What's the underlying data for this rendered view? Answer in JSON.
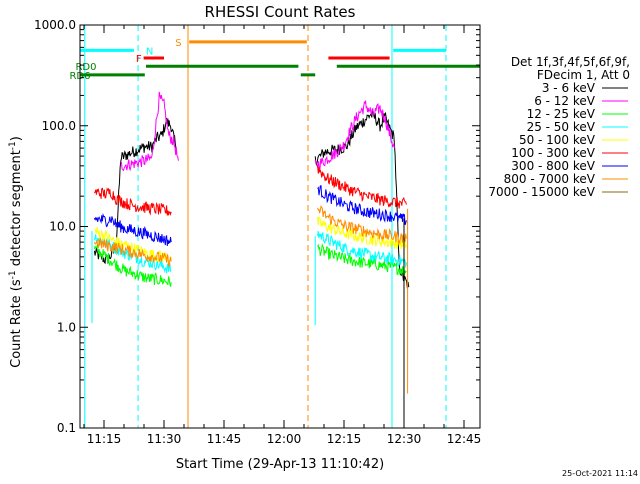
{
  "chart_data": {
    "type": "line",
    "title": "RHESSI Count Rates",
    "xlabel": "Start Time (29-Apr-13 11:10:42)",
    "ylabel_main": "Count Rate (s",
    "ylabel_sup1": "-1",
    "ylabel_mid": " detector segment",
    "ylabel_sup2": "-1",
    "ylabel_end": ")",
    "y_log": true,
    "ylim": [
      0.1,
      1000
    ],
    "xlim": [
      11.15,
      12.8167
    ],
    "x_ticks": [
      {
        "x": 11.25,
        "label": "11:15"
      },
      {
        "x": 11.5,
        "label": "11:30"
      },
      {
        "x": 11.75,
        "label": "11:45"
      },
      {
        "x": 12.0,
        "label": "12:00"
      },
      {
        "x": 12.25,
        "label": "12:15"
      },
      {
        "x": 12.5,
        "label": "12:30"
      },
      {
        "x": 12.75,
        "label": "12:45"
      }
    ],
    "y_ticks": [
      {
        "y": 0.1,
        "label": "0.1"
      },
      {
        "y": 1,
        "label": "1.0"
      },
      {
        "y": 10,
        "label": "10.0"
      },
      {
        "y": 100,
        "label": "100.0"
      },
      {
        "y": 1000,
        "label": "1000.0"
      }
    ],
    "legend_header": [
      "Det 1f,3f,4f,5f,6f,9f,",
      "FDecim 1, Att 0"
    ],
    "legend_position": "right",
    "series": [
      {
        "name": "3 - 6 keV",
        "color": "#000000",
        "segments": [
          [
            [
              11.21,
              5.5
            ],
            [
              11.26,
              4.6
            ],
            [
              11.28,
              5.2
            ],
            [
              11.3,
              6.2
            ],
            [
              11.32,
              48
            ],
            [
              11.37,
              55
            ],
            [
              11.42,
              62
            ],
            [
              11.45,
              62
            ],
            [
              11.47,
              75
            ],
            [
              11.49,
              80
            ],
            [
              11.51,
              110
            ],
            [
              11.53,
              100
            ],
            [
              11.55,
              60
            ]
          ],
          [
            [
              12.13,
              45
            ],
            [
              12.17,
              55
            ],
            [
              12.22,
              58
            ],
            [
              12.26,
              62
            ],
            [
              12.3,
              95
            ],
            [
              12.33,
              110
            ],
            [
              12.36,
              130
            ],
            [
              12.38,
              120
            ],
            [
              12.4,
              100
            ],
            [
              12.42,
              120
            ],
            [
              12.44,
              95
            ],
            [
              12.46,
              75
            ],
            [
              12.48,
              4.0
            ],
            [
              12.5,
              3.0
            ],
            [
              12.52,
              2.5
            ]
          ]
        ]
      },
      {
        "name": "6 - 12 keV",
        "color": "#ff00ff",
        "segments": [
          [
            [
              11.32,
              40
            ],
            [
              11.37,
              42
            ],
            [
              11.42,
              45
            ],
            [
              11.45,
              48
            ],
            [
              11.47,
              120
            ],
            [
              11.48,
              190
            ],
            [
              11.5,
              160
            ],
            [
              11.52,
              80
            ],
            [
              11.54,
              70
            ],
            [
              11.56,
              45
            ]
          ],
          [
            [
              12.13,
              40
            ],
            [
              12.17,
              45
            ],
            [
              12.22,
              55
            ],
            [
              12.25,
              65
            ],
            [
              12.28,
              95
            ],
            [
              12.31,
              130
            ],
            [
              12.34,
              160
            ],
            [
              12.37,
              130
            ],
            [
              12.4,
              150
            ],
            [
              12.42,
              120
            ],
            [
              12.45,
              70
            ],
            [
              12.46,
              60
            ]
          ]
        ]
      },
      {
        "name": "12 - 25 keV",
        "color": "#00ff00",
        "segments": [
          [
            [
              11.21,
              6.0
            ],
            [
              11.26,
              5.0
            ],
            [
              11.3,
              4.2
            ],
            [
              11.34,
              3.6
            ],
            [
              11.38,
              3.4
            ],
            [
              11.42,
              3.1
            ],
            [
              11.46,
              3.0
            ],
            [
              11.5,
              2.9
            ],
            [
              11.53,
              2.8
            ]
          ],
          [
            [
              12.14,
              6.0
            ],
            [
              12.2,
              5.2
            ],
            [
              12.26,
              4.7
            ],
            [
              12.32,
              4.4
            ],
            [
              12.38,
              4.2
            ],
            [
              12.44,
              4.0
            ],
            [
              12.48,
              3.8
            ],
            [
              12.51,
              3.6
            ]
          ]
        ]
      },
      {
        "name": "25 - 50 keV",
        "color": "#00ffff",
        "segments": [
          [
            [
              11.21,
              8.0
            ],
            [
              11.26,
              7.0
            ],
            [
              11.3,
              6.0
            ],
            [
              11.34,
              5.4
            ],
            [
              11.38,
              5.0
            ],
            [
              11.42,
              4.5
            ],
            [
              11.46,
              4.3
            ],
            [
              11.5,
              4.0
            ],
            [
              11.53,
              3.7
            ]
          ],
          [
            [
              12.14,
              8.5
            ],
            [
              12.2,
              7.0
            ],
            [
              12.26,
              6.0
            ],
            [
              12.32,
              5.5
            ],
            [
              12.38,
              5.0
            ],
            [
              12.44,
              4.8
            ],
            [
              12.48,
              4.6
            ],
            [
              12.51,
              4.4
            ]
          ]
        ]
      },
      {
        "name": "50 - 100 keV",
        "color": "#ffff00",
        "segments": [
          [
            [
              11.21,
              9.0
            ],
            [
              11.26,
              8.0
            ],
            [
              11.3,
              7.0
            ],
            [
              11.34,
              6.5
            ],
            [
              11.38,
              6.0
            ],
            [
              11.42,
              5.5
            ],
            [
              11.46,
              5.2
            ],
            [
              11.5,
              5.0
            ],
            [
              11.53,
              4.8
            ]
          ],
          [
            [
              12.14,
              11
            ],
            [
              12.2,
              9.5
            ],
            [
              12.26,
              8.5
            ],
            [
              12.32,
              7.8
            ],
            [
              12.38,
              7.3
            ],
            [
              12.44,
              7.0
            ],
            [
              12.48,
              6.8
            ],
            [
              12.51,
              6.6
            ]
          ]
        ]
      },
      {
        "name": "100 - 300 keV",
        "color": "#ff0000",
        "segments": [
          [
            [
              11.21,
              22
            ],
            [
              11.26,
              21
            ],
            [
              11.28,
              22
            ],
            [
              11.3,
              19
            ],
            [
              11.34,
              17
            ],
            [
              11.38,
              16
            ],
            [
              11.42,
              15.5
            ],
            [
              11.46,
              15
            ],
            [
              11.5,
              14.5
            ],
            [
              11.53,
              14
            ]
          ],
          [
            [
              12.14,
              38
            ],
            [
              12.18,
              30
            ],
            [
              12.22,
              27
            ],
            [
              12.26,
              24
            ],
            [
              12.3,
              22
            ],
            [
              12.34,
              20
            ],
            [
              12.38,
              19
            ],
            [
              12.42,
              18
            ],
            [
              12.46,
              17.5
            ],
            [
              12.48,
              17
            ],
            [
              12.51,
              16.5
            ]
          ]
        ]
      },
      {
        "name": "300 - 800 keV",
        "color": "#0000ff",
        "segments": [
          [
            [
              11.21,
              12
            ],
            [
              11.26,
              11.5
            ],
            [
              11.28,
              12
            ],
            [
              11.3,
              10.5
            ],
            [
              11.34,
              9.5
            ],
            [
              11.38,
              9.0
            ],
            [
              11.42,
              8.5
            ],
            [
              11.46,
              8.0
            ],
            [
              11.5,
              7.5
            ],
            [
              11.53,
              7.0
            ]
          ],
          [
            [
              12.14,
              24
            ],
            [
              12.18,
              20
            ],
            [
              12.22,
              18
            ],
            [
              12.26,
              16
            ],
            [
              12.3,
              15
            ],
            [
              12.34,
              14
            ],
            [
              12.38,
              13.5
            ],
            [
              12.42,
              13
            ],
            [
              12.46,
              12.5
            ],
            [
              12.48,
              12
            ],
            [
              12.51,
              11.5
            ]
          ]
        ]
      },
      {
        "name": "800 - 7000 keV",
        "color": "#ff8c00",
        "segments": [
          [
            [
              11.21,
              7.0
            ],
            [
              11.26,
              6.5
            ],
            [
              11.3,
              6.2
            ],
            [
              11.34,
              5.8
            ],
            [
              11.38,
              5.5
            ],
            [
              11.42,
              5.2
            ],
            [
              11.46,
              5.0
            ],
            [
              11.5,
              4.8
            ],
            [
              11.53,
              4.5
            ]
          ],
          [
            [
              12.14,
              15
            ],
            [
              12.18,
              12.5
            ],
            [
              12.22,
              11
            ],
            [
              12.26,
              10
            ],
            [
              12.3,
              9.5
            ],
            [
              12.34,
              9.0
            ],
            [
              12.38,
              8.5
            ],
            [
              12.42,
              8.2
            ],
            [
              12.46,
              8.0
            ],
            [
              12.48,
              7.8
            ],
            [
              12.51,
              7.6
            ]
          ]
        ]
      },
      {
        "name": "7000 - 15000 keV",
        "color": "#8b6914",
        "segments": []
      }
    ],
    "drops": [
      {
        "x": 11.2,
        "y_low": 1.1,
        "y_high": 9,
        "color": "#00ffff"
      },
      {
        "x": 12.13,
        "y_low": 1.05,
        "y_high": 8,
        "color": "#00ffff"
      },
      {
        "x": 12.5,
        "y_low": 0.12,
        "y_high": 12,
        "color": "#000000"
      },
      {
        "x": 12.515,
        "y_low": 0.22,
        "y_high": 15,
        "color": "#ff8c00"
      }
    ],
    "vlines": [
      {
        "x": 11.17,
        "color": "#00ffff",
        "style": "solid"
      },
      {
        "x": 11.392,
        "color": "#00ffff",
        "style": "dashed"
      },
      {
        "x": 11.6,
        "color": "#ff8c00",
        "style": "solid"
      },
      {
        "x": 12.1,
        "color": "#ff8c00",
        "style": "dashed"
      },
      {
        "x": 12.45,
        "color": "#00ffff",
        "style": "solid"
      },
      {
        "x": 12.675,
        "color": "#00ffff",
        "style": "dashed"
      }
    ],
    "flags": [
      {
        "label": "N",
        "color": "#00ffff",
        "y": 560,
        "label_at": 11.44,
        "bars": [
          [
            11.15,
            11.375
          ],
          [
            12.455,
            12.675
          ]
        ]
      },
      {
        "label": "S",
        "color": "#ff8c00",
        "y": 680,
        "label_at": 11.56,
        "bars": [
          [
            11.605,
            12.095
          ]
        ]
      },
      {
        "label": "F",
        "color": "#ff0000",
        "y": 470,
        "label_at": 11.395,
        "bars": [
          [
            11.415,
            11.5
          ],
          [
            12.185,
            12.44
          ]
        ]
      },
      {
        "label": "RD0",
        "color": "#008000",
        "y": 390,
        "label_at": 11.175,
        "bars": [
          [
            11.425,
            12.06
          ],
          [
            12.22,
            12.8167
          ]
        ]
      },
      {
        "label": "RD6",
        "color": "#008000",
        "y": 320,
        "label_at": 11.15,
        "bars": [
          [
            11.15,
            11.42
          ],
          [
            12.07,
            12.13
          ]
        ]
      }
    ],
    "timestamp": "25-Oct-2021 11:14"
  }
}
